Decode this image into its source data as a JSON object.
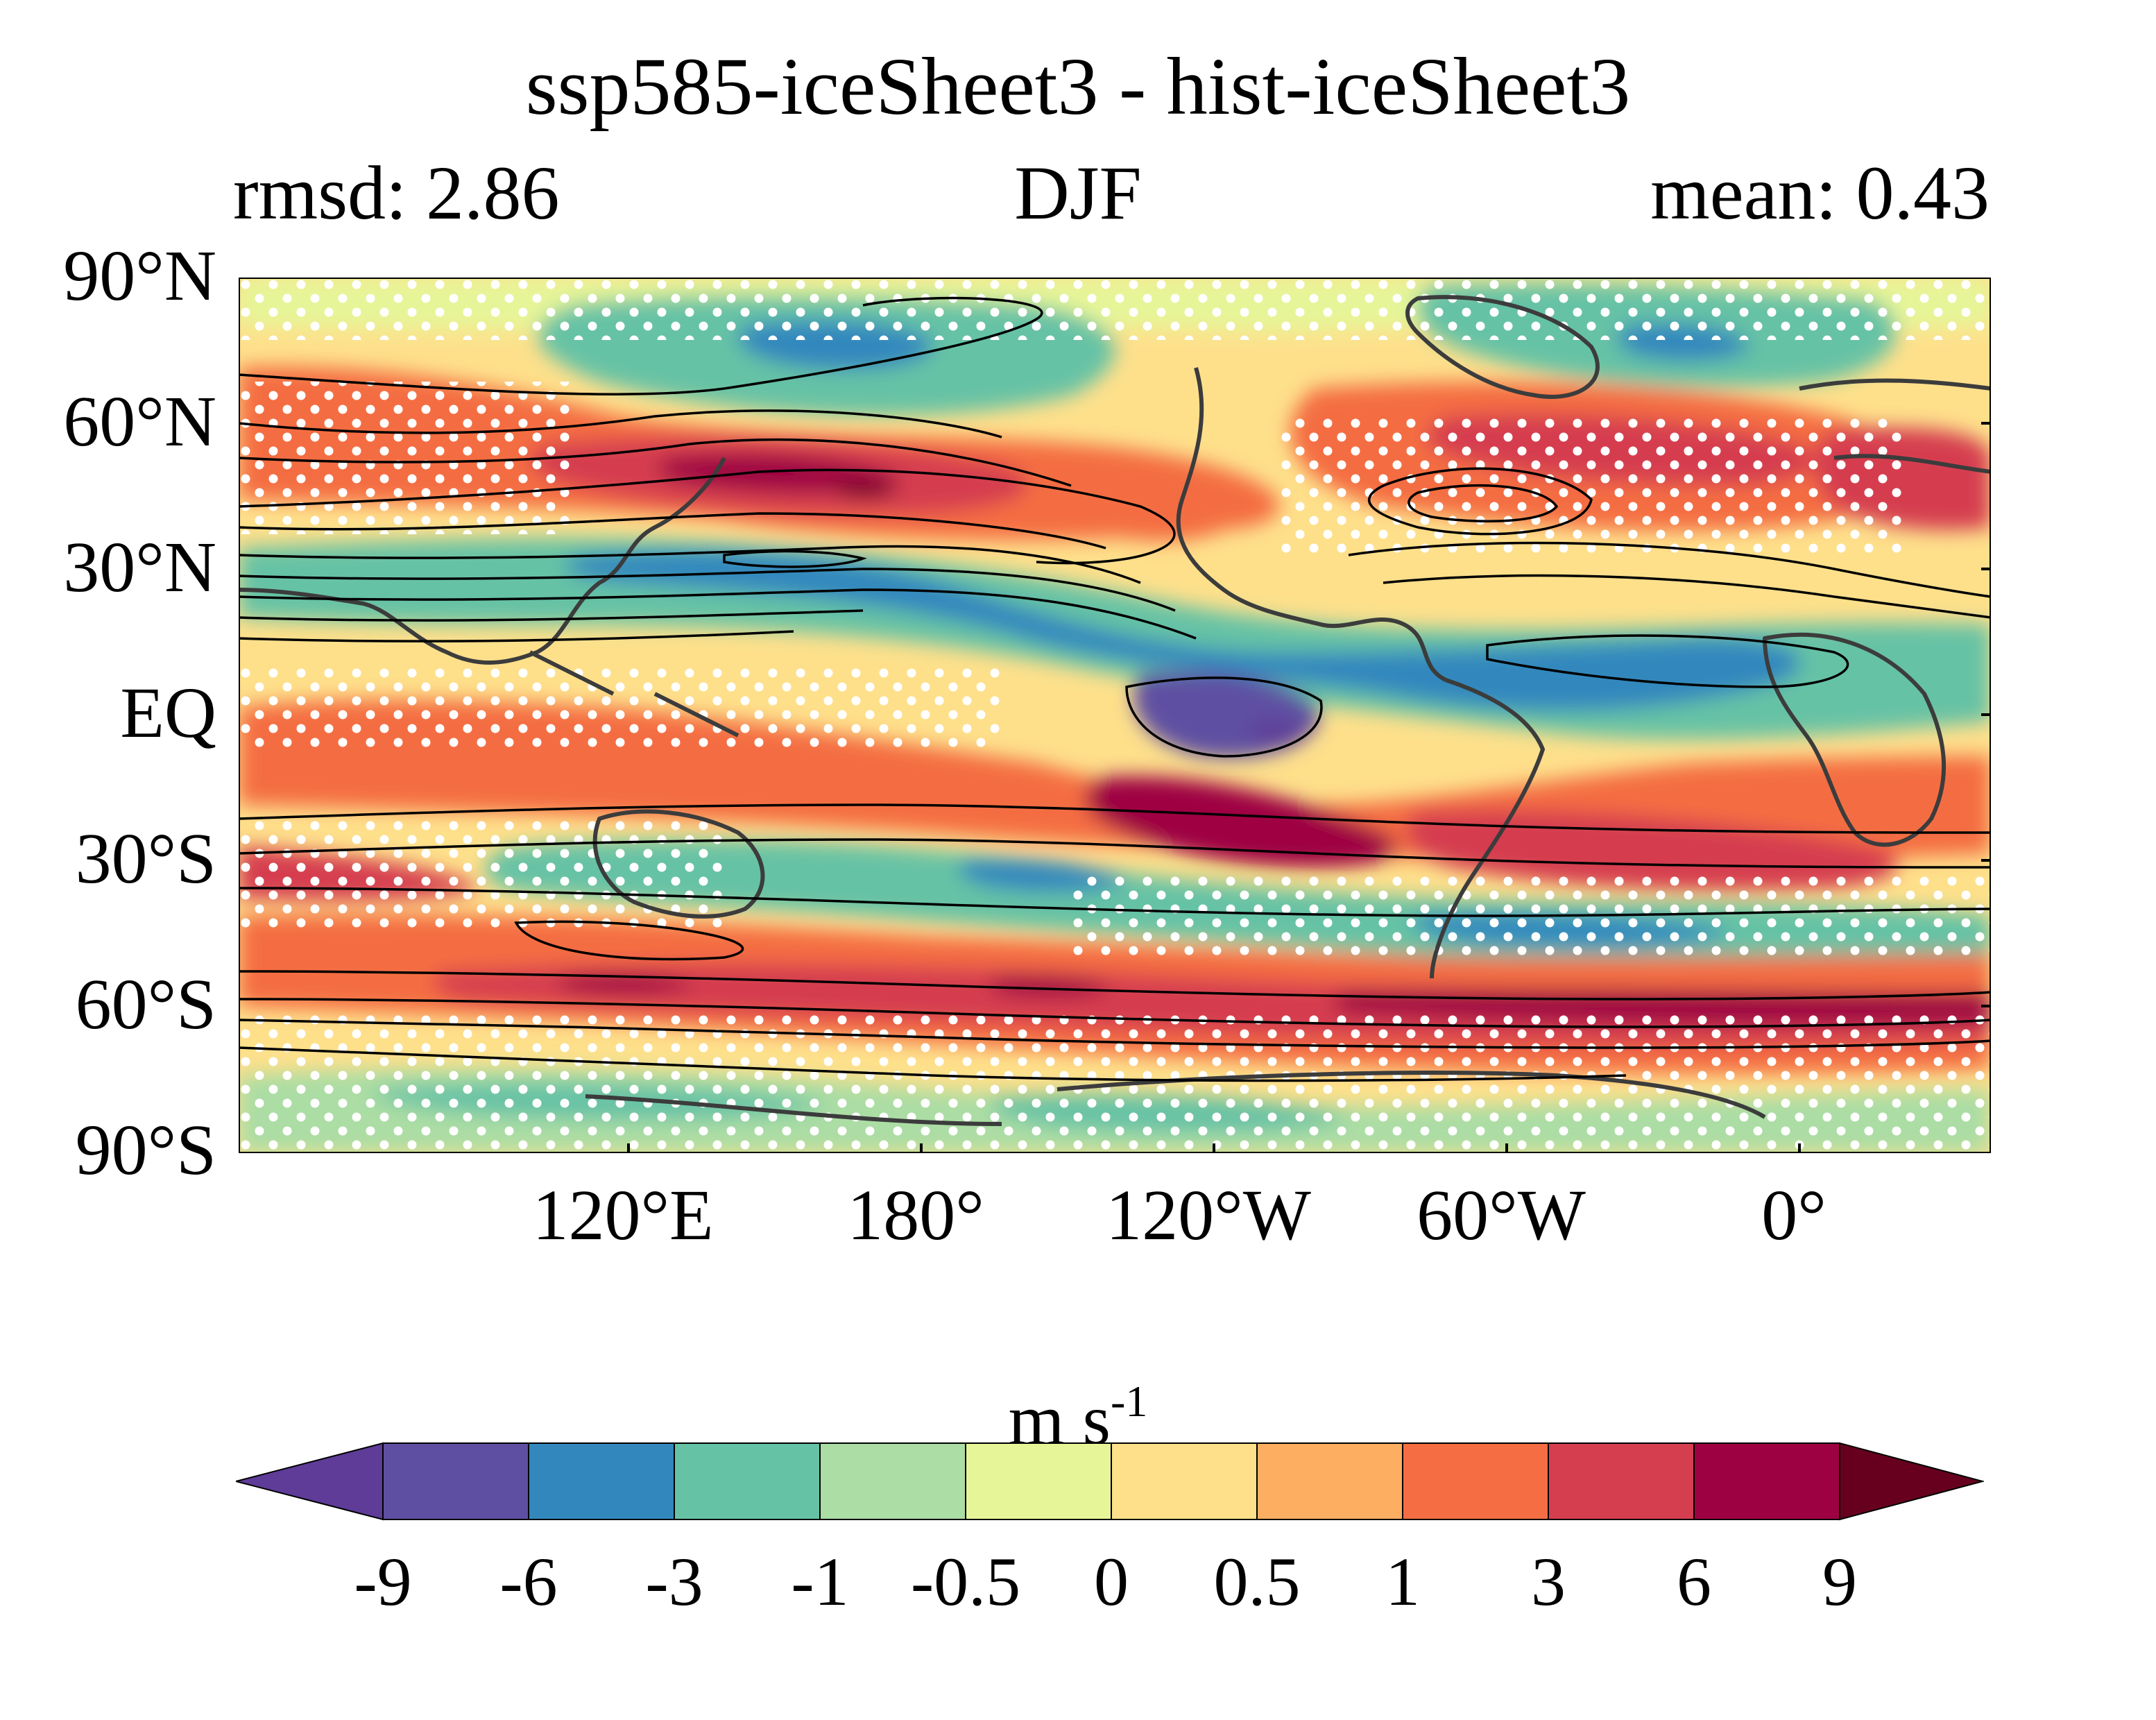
{
  "header": {
    "title": "ssp585-iceSheet3 - hist-iceSheet3",
    "rmsd": "rmsd: 2.86",
    "season": "DJF",
    "mean": "mean: 0.43"
  },
  "axes": {
    "y_labels": [
      "90°N",
      "60°N",
      "30°N",
      "EQ",
      "30°S",
      "60°S",
      "90°S"
    ],
    "x_labels": [
      "120°E",
      "180°",
      "120°W",
      "60°W",
      "0°"
    ]
  },
  "colorbar": {
    "unit_base": "m s",
    "unit_exp": "-1",
    "ticks": [
      "-9",
      "-6",
      "-3",
      "-1",
      "-0.5",
      "0",
      "0.5",
      "1",
      "3",
      "6",
      "9"
    ],
    "colors": [
      "#5e3c98",
      "#5e4fa2",
      "#3288bd",
      "#66c2a5",
      "#abdda4",
      "#e6f598",
      "#fee08b",
      "#fdae61",
      "#f46d43",
      "#d53e4f",
      "#9e0142",
      "#67001f"
    ]
  }
}
